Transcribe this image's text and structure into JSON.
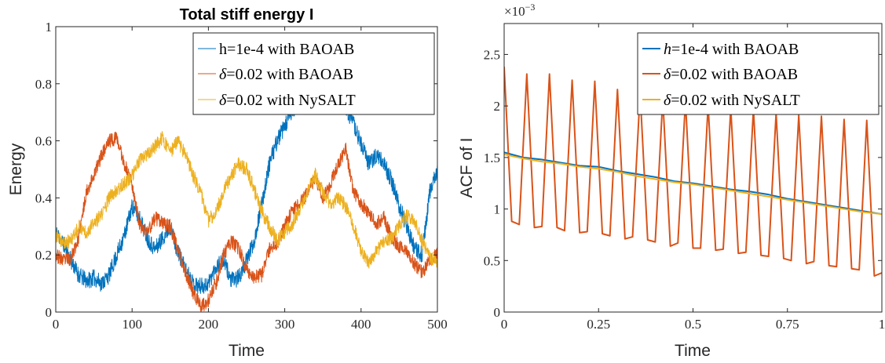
{
  "chart_data": [
    {
      "type": "line",
      "title": "Total stiff energy I",
      "xlabel": "Time",
      "ylabel": "Energy",
      "xlim": [
        0,
        500
      ],
      "ylim": [
        0,
        1
      ],
      "xticks": [
        0,
        100,
        200,
        300,
        400,
        500
      ],
      "xtick_labels": [
        "0",
        "100",
        "200",
        "300",
        "400",
        "500"
      ],
      "yticks": [
        0,
        0.2,
        0.4,
        0.6,
        0.8,
        1
      ],
      "ytick_labels": [
        "0",
        "0.2",
        "0.4",
        "0.6",
        "0.8",
        "1"
      ],
      "grid": false,
      "legend_position": "top-right",
      "series": [
        {
          "name": "h=1e-4 with BAOAB",
          "legend_parts": [
            {
              "t": "h=1e-4 with BAOAB",
              "i": false
            }
          ],
          "color": "#0072BD",
          "line_width": 1,
          "x": [
            0,
            10,
            20,
            30,
            40,
            50,
            60,
            70,
            80,
            90,
            100,
            110,
            120,
            130,
            140,
            150,
            160,
            170,
            180,
            190,
            200,
            210,
            220,
            230,
            240,
            250,
            260,
            270,
            280,
            290,
            300,
            310,
            320,
            330,
            340,
            350,
            360,
            370,
            380,
            390,
            400,
            410,
            420,
            430,
            440,
            450,
            460,
            470,
            480,
            490,
            500
          ],
          "y": [
            0.28,
            0.24,
            0.18,
            0.13,
            0.11,
            0.12,
            0.1,
            0.13,
            0.2,
            0.27,
            0.37,
            0.33,
            0.26,
            0.22,
            0.26,
            0.3,
            0.21,
            0.15,
            0.1,
            0.09,
            0.1,
            0.16,
            0.18,
            0.11,
            0.12,
            0.18,
            0.25,
            0.38,
            0.52,
            0.6,
            0.65,
            0.7,
            0.74,
            0.8,
            0.74,
            0.75,
            0.8,
            0.75,
            0.72,
            0.66,
            0.59,
            0.52,
            0.55,
            0.52,
            0.46,
            0.37,
            0.3,
            0.22,
            0.2,
            0.42,
            0.5
          ],
          "noise": 0.03,
          "seed": 11
        },
        {
          "name": "δ=0.02 with BAOAB",
          "legend_parts": [
            {
              "t": "δ",
              "i": true
            },
            {
              "t": "=0.02 with BAOAB",
              "i": false
            }
          ],
          "color": "#D95319",
          "line_width": 1,
          "x": [
            0,
            10,
            20,
            30,
            40,
            50,
            60,
            70,
            80,
            90,
            100,
            110,
            120,
            130,
            140,
            150,
            160,
            170,
            180,
            190,
            200,
            210,
            220,
            230,
            240,
            250,
            260,
            270,
            280,
            290,
            300,
            310,
            320,
            330,
            340,
            350,
            360,
            370,
            380,
            390,
            400,
            410,
            420,
            430,
            440,
            450,
            460,
            470,
            480,
            490,
            500
          ],
          "y": [
            0.2,
            0.18,
            0.19,
            0.26,
            0.42,
            0.48,
            0.55,
            0.6,
            0.61,
            0.52,
            0.45,
            0.3,
            0.28,
            0.33,
            0.31,
            0.3,
            0.22,
            0.14,
            0.07,
            0.02,
            0.04,
            0.1,
            0.2,
            0.25,
            0.22,
            0.15,
            0.12,
            0.13,
            0.22,
            0.24,
            0.3,
            0.36,
            0.38,
            0.42,
            0.47,
            0.4,
            0.45,
            0.52,
            0.57,
            0.42,
            0.38,
            0.35,
            0.31,
            0.33,
            0.26,
            0.23,
            0.22,
            0.17,
            0.14,
            0.18,
            0.21
          ],
          "noise": 0.025,
          "seed": 23
        },
        {
          "name": "δ=0.02 with NySALT",
          "legend_parts": [
            {
              "t": "δ",
              "i": true
            },
            {
              "t": "=0.02 with NySALT",
              "i": false
            }
          ],
          "color": "#EDB120",
          "line_width": 1,
          "x": [
            0,
            10,
            20,
            30,
            40,
            50,
            60,
            70,
            80,
            90,
            100,
            110,
            120,
            130,
            140,
            150,
            160,
            170,
            180,
            190,
            200,
            210,
            220,
            230,
            240,
            250,
            260,
            270,
            280,
            290,
            300,
            310,
            320,
            330,
            340,
            350,
            360,
            370,
            380,
            390,
            400,
            410,
            420,
            430,
            440,
            450,
            460,
            470,
            480,
            490,
            500
          ],
          "y": [
            0.27,
            0.24,
            0.25,
            0.3,
            0.28,
            0.31,
            0.34,
            0.4,
            0.43,
            0.45,
            0.48,
            0.53,
            0.55,
            0.58,
            0.61,
            0.56,
            0.6,
            0.55,
            0.48,
            0.42,
            0.32,
            0.35,
            0.42,
            0.48,
            0.52,
            0.5,
            0.43,
            0.35,
            0.3,
            0.25,
            0.28,
            0.31,
            0.36,
            0.42,
            0.48,
            0.42,
            0.38,
            0.4,
            0.37,
            0.3,
            0.22,
            0.17,
            0.21,
            0.25,
            0.26,
            0.3,
            0.34,
            0.32,
            0.25,
            0.19,
            0.17
          ],
          "noise": 0.025,
          "seed": 37
        }
      ]
    },
    {
      "type": "line",
      "title": "",
      "xlabel": "Time",
      "ylabel": "ACF of I",
      "y_exponent": "×10",
      "y_exponent_power": "−3",
      "xlim": [
        0,
        1
      ],
      "ylim": [
        0,
        2.8
      ],
      "xticks": [
        0,
        0.25,
        0.5,
        0.75,
        1
      ],
      "xtick_labels": [
        "0",
        "0.25",
        "0.5",
        "0.75",
        "1"
      ],
      "yticks": [
        0,
        0.5,
        1,
        1.5,
        2,
        2.5
      ],
      "ytick_labels": [
        "0",
        "0.5",
        "1",
        "1.5",
        "2",
        "2.5"
      ],
      "grid": false,
      "legend_position": "top-right",
      "series": [
        {
          "name": "h=1e-4 with BAOAB",
          "legend_parts": [
            {
              "t": "h",
              "i": true
            },
            {
              "t": "=1e-4 with BAOAB",
              "i": false
            }
          ],
          "color": "#0072BD",
          "line_width": 2,
          "x": [
            0,
            0.05,
            0.1,
            0.15,
            0.2,
            0.25,
            0.3,
            0.35,
            0.4,
            0.45,
            0.5,
            0.55,
            0.6,
            0.65,
            0.7,
            0.75,
            0.8,
            0.85,
            0.9,
            0.95,
            1
          ],
          "y": [
            1.55,
            1.5,
            1.48,
            1.45,
            1.42,
            1.41,
            1.37,
            1.34,
            1.31,
            1.27,
            1.25,
            1.22,
            1.19,
            1.17,
            1.14,
            1.1,
            1.07,
            1.04,
            1.01,
            0.98,
            0.95
          ]
        },
        {
          "name": "δ=0.02 with BAOAB",
          "legend_parts": [
            {
              "t": "δ",
              "i": true
            },
            {
              "t": "=0.02 with BAOAB",
              "i": false
            }
          ],
          "color": "#D95319",
          "line_width": 2,
          "x": [
            0,
            0.02,
            0.04,
            0.06,
            0.08,
            0.1,
            0.12,
            0.14,
            0.16,
            0.18,
            0.2,
            0.22,
            0.24,
            0.26,
            0.28,
            0.3,
            0.32,
            0.34,
            0.36,
            0.38,
            0.4,
            0.42,
            0.44,
            0.46,
            0.48,
            0.5,
            0.52,
            0.54,
            0.56,
            0.58,
            0.6,
            0.62,
            0.64,
            0.66,
            0.68,
            0.7,
            0.72,
            0.74,
            0.76,
            0.78,
            0.8,
            0.82,
            0.84,
            0.86,
            0.88,
            0.9,
            0.92,
            0.94,
            0.96,
            0.98,
            1
          ],
          "y": [
            2.38,
            0.88,
            0.85,
            2.31,
            0.82,
            0.83,
            2.31,
            0.82,
            0.79,
            2.25,
            0.77,
            0.78,
            2.24,
            0.76,
            0.74,
            2.16,
            0.71,
            0.73,
            2.13,
            0.7,
            0.68,
            2.07,
            0.64,
            0.67,
            2.05,
            0.62,
            0.62,
            2.01,
            0.6,
            0.61,
            1.98,
            0.57,
            0.58,
            1.97,
            0.55,
            0.54,
            1.93,
            0.52,
            0.5,
            1.91,
            0.47,
            0.49,
            1.9,
            0.45,
            0.44,
            1.87,
            0.42,
            0.41,
            1.86,
            0.35,
            0.38
          ]
        },
        {
          "name": "δ=0.02 with NySALT",
          "legend_parts": [
            {
              "t": "δ",
              "i": true
            },
            {
              "t": "=0.02 with NySALT",
              "i": false
            }
          ],
          "color": "#EDB120",
          "line_width": 2,
          "x": [
            0,
            0.05,
            0.1,
            0.15,
            0.2,
            0.25,
            0.3,
            0.35,
            0.4,
            0.45,
            0.5,
            0.55,
            0.6,
            0.65,
            0.7,
            0.75,
            0.8,
            0.85,
            0.9,
            0.95,
            1
          ],
          "y": [
            1.53,
            1.49,
            1.46,
            1.44,
            1.41,
            1.39,
            1.36,
            1.32,
            1.29,
            1.26,
            1.24,
            1.21,
            1.18,
            1.15,
            1.12,
            1.09,
            1.06,
            1.03,
            1,
            0.97,
            0.95
          ]
        }
      ]
    }
  ]
}
